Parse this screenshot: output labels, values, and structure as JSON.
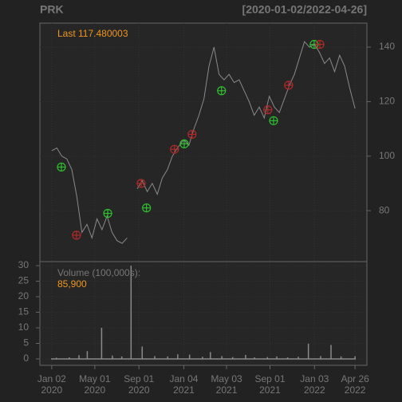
{
  "header": {
    "symbol": "PRK",
    "range": "[2020-01-02/2022-04-26]"
  },
  "chart_data": [
    {
      "type": "line",
      "annotation": "Last 117.480003",
      "color": "#8a8a8a",
      "grid": true,
      "x": [
        "2020-01-02",
        "2020-01-16",
        "2020-01-30",
        "2020-02-13",
        "2020-02-27",
        "2020-03-12",
        "2020-03-26",
        "2020-04-09",
        "2020-04-23",
        "2020-05-07",
        "2020-05-21",
        "2020-06-04",
        "2020-06-18",
        "2020-07-02",
        "2020-07-16",
        "2020-07-30",
        "2020-08-13",
        "2020-08-27",
        "2020-09-10",
        "2020-09-24",
        "2020-10-08",
        "2020-10-22",
        "2020-11-05",
        "2020-11-19",
        "2020-12-03",
        "2020-12-17",
        "2021-01-04",
        "2021-01-18",
        "2021-02-01",
        "2021-02-15",
        "2021-03-01",
        "2021-03-15",
        "2021-03-29",
        "2021-04-12",
        "2021-04-26",
        "2021-05-10",
        "2021-05-24",
        "2021-06-07",
        "2021-06-21",
        "2021-07-05",
        "2021-07-19",
        "2021-08-02",
        "2021-08-16",
        "2021-08-30",
        "2021-09-13",
        "2021-09-27",
        "2021-10-11",
        "2021-10-25",
        "2021-11-08",
        "2021-11-22",
        "2021-12-06",
        "2021-12-20",
        "2022-01-03",
        "2022-01-17",
        "2022-01-31",
        "2022-02-14",
        "2022-02-28",
        "2022-03-14",
        "2022-03-28",
        "2022-04-11",
        "2022-04-26"
      ],
      "values": [
        102,
        103,
        100,
        99,
        95,
        85,
        72,
        75,
        70,
        77,
        73,
        78,
        72,
        69,
        68,
        70,
        null,
        88,
        91,
        87,
        90,
        86,
        92,
        95,
        100,
        103,
        106,
        104,
        110,
        115,
        121,
        133,
        140,
        130,
        128,
        130,
        127,
        128,
        124,
        120,
        115,
        118,
        114,
        122,
        118,
        116,
        121,
        126,
        130,
        136,
        142,
        140,
        141,
        138,
        134,
        136,
        131,
        137,
        133,
        125,
        117.48
      ],
      "xlim": [
        "2019-11-30",
        "2022-05-29"
      ],
      "ylim": [
        61.3,
        148.8
      ],
      "yticks": [
        80,
        100,
        120,
        140
      ],
      "xticks": [
        {
          "value": "2020-01-02",
          "label": [
            "Jan 02",
            "2020"
          ]
        },
        {
          "value": "2020-05-01",
          "label": [
            "May 01",
            "2020"
          ]
        },
        {
          "value": "2020-09-01",
          "label": [
            "Sep 01",
            "2020"
          ]
        },
        {
          "value": "2021-01-04",
          "label": [
            "Jan 04",
            "2021"
          ]
        },
        {
          "value": "2021-05-03",
          "label": [
            "May 03",
            "2021"
          ]
        },
        {
          "value": "2021-09-01",
          "label": [
            "Sep 01",
            "2021"
          ]
        },
        {
          "value": "2022-01-03",
          "label": [
            "Jan 03",
            "2022"
          ]
        },
        {
          "value": "2022-04-26",
          "label": [
            "Apr 26",
            "2022"
          ]
        }
      ],
      "markers": [
        {
          "color": "#2fbf2f",
          "x": [
            "2020-01-29",
            "2020-06-06",
            "2020-09-22",
            "2021-01-05",
            "2021-04-19",
            "2021-09-11",
            "2022-01-02"
          ],
          "values": [
            96,
            79,
            81,
            104.5,
            124,
            113,
            141
          ]
        },
        {
          "color": "#b02a2a",
          "x": [
            "2020-03-11",
            "2020-09-07",
            "2020-12-09",
            "2021-01-27",
            "2021-08-26",
            "2021-10-23",
            "2022-01-18"
          ],
          "values": [
            71,
            90,
            102.5,
            108,
            117,
            126,
            141
          ]
        }
      ]
    },
    {
      "type": "bar",
      "annotation": "Volume (100,000s):",
      "last_label": "85,900",
      "color": "#8a8a8a",
      "grid": true,
      "x": [
        "2020-01-15",
        "2020-02-20",
        "2020-03-18",
        "2020-04-10",
        "2020-05-20",
        "2020-06-19",
        "2020-07-15",
        "2020-08-10",
        "2020-09-10",
        "2020-10-15",
        "2020-11-20",
        "2020-12-18",
        "2021-01-20",
        "2021-02-25",
        "2021-03-19",
        "2021-04-20",
        "2021-05-20",
        "2021-06-25",
        "2021-07-20",
        "2021-08-25",
        "2021-09-20",
        "2021-10-20",
        "2021-11-19",
        "2021-12-17",
        "2022-01-20",
        "2022-02-18",
        "2022-03-18",
        "2022-04-26"
      ],
      "values": [
        0.4,
        0.5,
        1.2,
        2.5,
        10,
        1.1,
        0.8,
        30,
        4,
        0.9,
        0.8,
        1.5,
        1.4,
        0.7,
        2.2,
        0.9,
        0.6,
        1.3,
        0.5,
        0.6,
        0.8,
        0.5,
        0.7,
        4.9,
        0.9,
        4.5,
        0.8,
        0.859
      ],
      "xlim": [
        "2019-11-30",
        "2022-05-29"
      ],
      "ylim": [
        -2.05,
        31.3
      ],
      "yticks": [
        0,
        5,
        10,
        15,
        20,
        25,
        30
      ]
    }
  ]
}
